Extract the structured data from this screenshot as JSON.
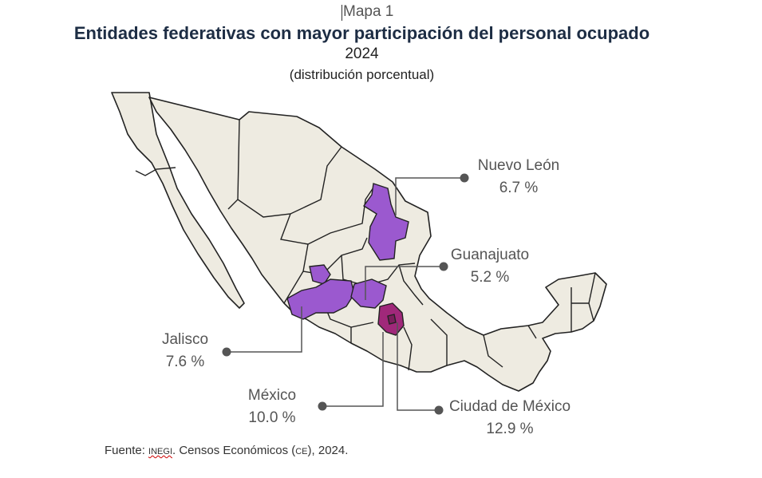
{
  "header": {
    "caption": "Mapa 1",
    "title": "Entidades federativas con mayor participación del personal ocupado",
    "year": "2024",
    "unit": "(distribución porcentual)"
  },
  "colors": {
    "land": "#eeebe1",
    "border": "#222222",
    "highlight_purple": "#9b59cf",
    "highlight_magenta": "#a0287a",
    "leader": "#555555"
  },
  "callouts": [
    {
      "id": "nuevo-leon",
      "state": "Nuevo León",
      "value": "6.7 %"
    },
    {
      "id": "guanajuato",
      "state": "Guanajuato",
      "value": "5.2 %"
    },
    {
      "id": "jalisco",
      "state": "Jalisco",
      "value": "7.6 %"
    },
    {
      "id": "mexico",
      "state": "México",
      "value": "10.0 %"
    },
    {
      "id": "cdmx",
      "state": "Ciudad de México",
      "value": "12.9 %"
    }
  ],
  "source": {
    "prefix": "Fuente: ",
    "org": "inegi",
    "mid": ". Censos Económicos (",
    "abbr": "ce",
    "suffix": "), 2024."
  }
}
